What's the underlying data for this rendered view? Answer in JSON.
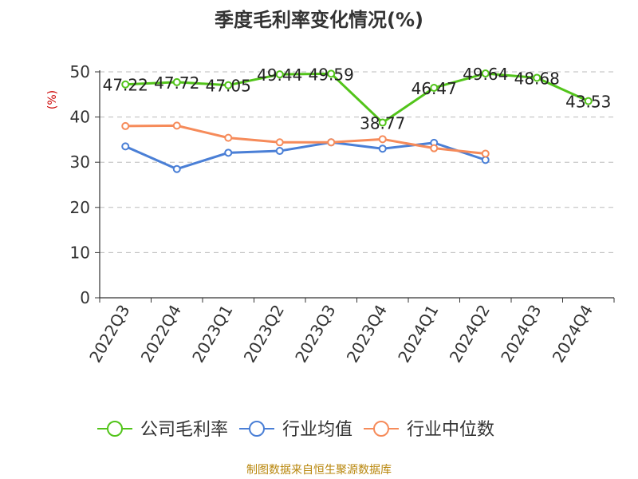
{
  "chart_data": {
    "type": "line",
    "title": "季度毛利率变化情况(%)",
    "ylabel": "(%)",
    "xlabel": "",
    "categories": [
      "2022Q3",
      "2022Q4",
      "2023Q1",
      "2023Q2",
      "2023Q3",
      "2023Q4",
      "2024Q1",
      "2024Q2",
      "2024Q3",
      "2024Q4"
    ],
    "yticks": [
      0,
      10,
      20,
      30,
      40,
      50
    ],
    "ylim": [
      0,
      50
    ],
    "grid": true,
    "legend_position": "bottom",
    "series": [
      {
        "name": "公司毛利率",
        "color": "#52c41a",
        "values": [
          47.22,
          47.72,
          47.05,
          49.44,
          49.59,
          38.77,
          46.47,
          49.64,
          48.68,
          43.53
        ],
        "labels": [
          "47.22",
          "47.72",
          "47.05",
          "49.44",
          "49.59",
          "38.77",
          "46.47",
          "49.64",
          "48.68",
          "43.53"
        ]
      },
      {
        "name": "行业均值",
        "color": "#4a7fd6",
        "values": [
          33.5,
          28.5,
          32.1,
          32.5,
          34.4,
          33.0,
          34.3,
          30.5,
          null,
          null
        ]
      },
      {
        "name": "行业中位数",
        "color": "#f68b5a",
        "values": [
          38.0,
          38.1,
          35.4,
          34.4,
          34.4,
          35.1,
          33.1,
          31.9,
          null,
          null
        ]
      }
    ]
  },
  "footer": {
    "source": "制图数据来自恒生聚源数据库"
  }
}
